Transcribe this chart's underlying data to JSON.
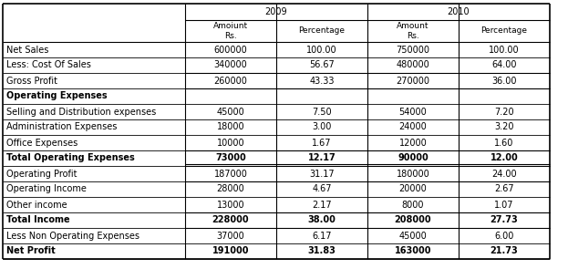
{
  "col_headers_row1": [
    "2009",
    "2010"
  ],
  "col_headers_row2": [
    "Amoiunt\nRs.",
    "Percentage",
    "Amount\nRs.",
    "Percentage"
  ],
  "rows": [
    {
      "label": "Net Sales",
      "bold": false,
      "vals": [
        "600000",
        "100.00",
        "750000",
        "100.00"
      ],
      "top_border": false,
      "double_top": false
    },
    {
      "label": "Less: Cost Of Sales",
      "bold": false,
      "vals": [
        "340000",
        "56.67",
        "480000",
        "64.00"
      ],
      "top_border": false,
      "double_top": false
    },
    {
      "label": "Gross Profit",
      "bold": false,
      "vals": [
        "260000",
        "43.33",
        "270000",
        "36.00"
      ],
      "top_border": true,
      "double_top": false
    },
    {
      "label": "Operating Expenses",
      "bold": true,
      "vals": [
        "",
        "",
        "",
        ""
      ],
      "top_border": true,
      "double_top": false
    },
    {
      "label": "Selling and Distribution expenses",
      "bold": false,
      "vals": [
        "45000",
        "7.50",
        "54000",
        "7.20"
      ],
      "top_border": false,
      "double_top": false
    },
    {
      "label": "Administration Expenses",
      "bold": false,
      "vals": [
        "18000",
        "3.00",
        "24000",
        "3.20"
      ],
      "top_border": false,
      "double_top": false
    },
    {
      "label": "Office Expenses",
      "bold": false,
      "vals": [
        "10000",
        "1.67",
        "12000",
        "1.60"
      ],
      "top_border": false,
      "double_top": false
    },
    {
      "label": "Total Operating Expenses",
      "bold": true,
      "vals": [
        "73000",
        "12.17",
        "90000",
        "12.00"
      ],
      "top_border": true,
      "double_top": false
    },
    {
      "label": "Operating Profit",
      "bold": false,
      "vals": [
        "187000",
        "31.17",
        "180000",
        "24.00"
      ],
      "top_border": true,
      "double_top": true
    },
    {
      "label": "Operating Income",
      "bold": false,
      "vals": [
        "28000",
        "4.67",
        "20000",
        "2.67"
      ],
      "top_border": true,
      "double_top": false
    },
    {
      "label": "Other income",
      "bold": false,
      "vals": [
        "13000",
        "2.17",
        "8000",
        "1.07"
      ],
      "top_border": false,
      "double_top": false
    },
    {
      "label": "Total Income",
      "bold": true,
      "vals": [
        "228000",
        "38.00",
        "208000",
        "27.73"
      ],
      "top_border": true,
      "double_top": false
    },
    {
      "label": "Less Non Operating Expenses",
      "bold": false,
      "vals": [
        "37000",
        "6.17",
        "45000",
        "6.00"
      ],
      "top_border": true,
      "double_top": false
    },
    {
      "label": "Net Profit",
      "bold": true,
      "vals": [
        "191000",
        "31.83",
        "163000",
        "21.73"
      ],
      "top_border": false,
      "double_top": false
    }
  ],
  "bg_color": "#ffffff",
  "border_color": "#000000",
  "text_color": "#000000",
  "fontsize": 7.0,
  "header_fontsize": 7.0,
  "figwidth": 6.23,
  "figheight": 3.06,
  "dpi": 100
}
